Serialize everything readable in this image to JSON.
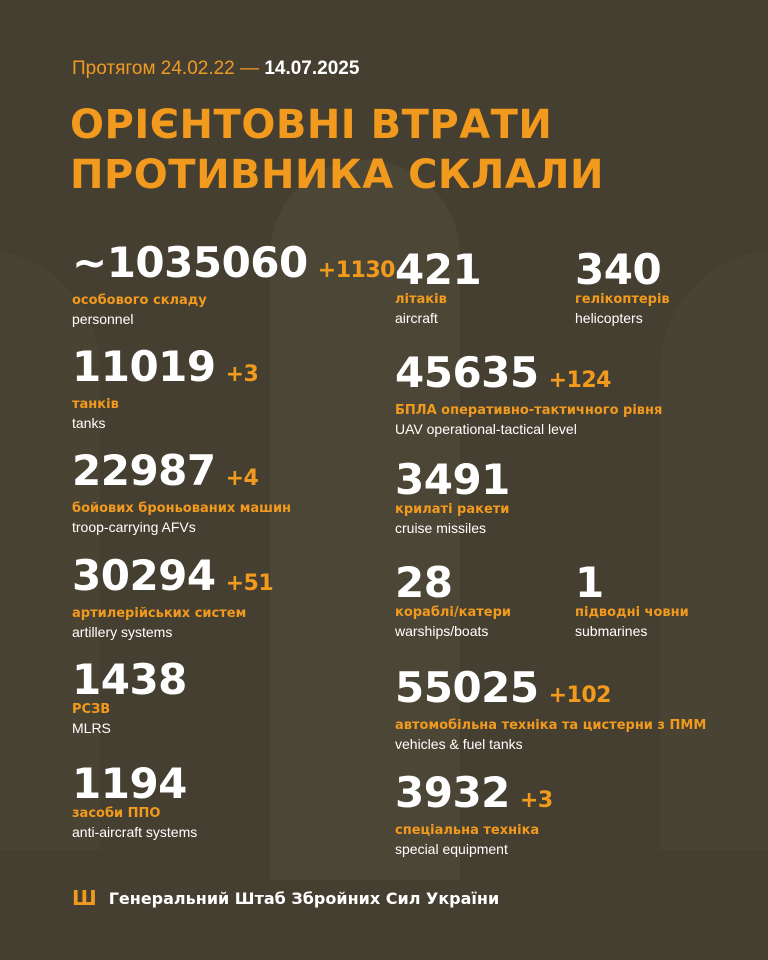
{
  "header": {
    "period_prefix": "Протягом 24.02.22 —",
    "period_end": "14.07.2025",
    "title_line1": "ОРІЄНТОВНІ ВТРАТИ",
    "title_line2": "ПРОТИВНИКА СКЛАЛИ"
  },
  "stats": [
    {
      "value": "~1035060",
      "delta": "+1130",
      "ua": "особового складу",
      "en": "personnel"
    },
    {
      "value": "11019",
      "delta": "+3",
      "ua": "танків",
      "en": "tanks"
    },
    {
      "value": "22987",
      "delta": "+4",
      "ua": "бойових броньованих машин",
      "en": "troop-carrying AFVs"
    },
    {
      "value": "30294",
      "delta": "+51",
      "ua": "артилерійських систем",
      "en": "artillery systems"
    },
    {
      "value": "1438",
      "delta": "",
      "ua": "РСЗВ",
      "en": "MLRS"
    },
    {
      "value": "1194",
      "delta": "",
      "ua": "засоби ППО",
      "en": "anti-aircraft systems"
    },
    {
      "value": "421",
      "delta": "",
      "ua": "літаків",
      "en": "aircraft"
    },
    {
      "value": "340",
      "delta": "",
      "ua": "гелікоптерів",
      "en": "helicopters"
    },
    {
      "value": "45635",
      "delta": "+124",
      "ua": "БПЛА оперативно-тактичного рівня",
      "en": "UAV operational-tactical level"
    },
    {
      "value": "3491",
      "delta": "",
      "ua": "крилаті ракети",
      "en": "cruise missiles"
    },
    {
      "value": "28",
      "delta": "",
      "ua": "кораблі/катери",
      "en": "warships/boats"
    },
    {
      "value": "1",
      "delta": "",
      "ua": "підводні човни",
      "en": "submarines"
    },
    {
      "value": "55025",
      "delta": "+102",
      "ua": "автомобільна техніка та цистерни з ПММ",
      "en": "vehicles & fuel tanks"
    },
    {
      "value": "3932",
      "delta": "+3",
      "ua": "спеціальна техніка",
      "en": "special equipment"
    }
  ],
  "footer": {
    "org": "Генеральний Штаб Збройних Сил України",
    "emblem_icon": "trident-icon"
  },
  "colors": {
    "background": "#453f31",
    "accent": "#f29a1d",
    "text": "#ffffff"
  }
}
